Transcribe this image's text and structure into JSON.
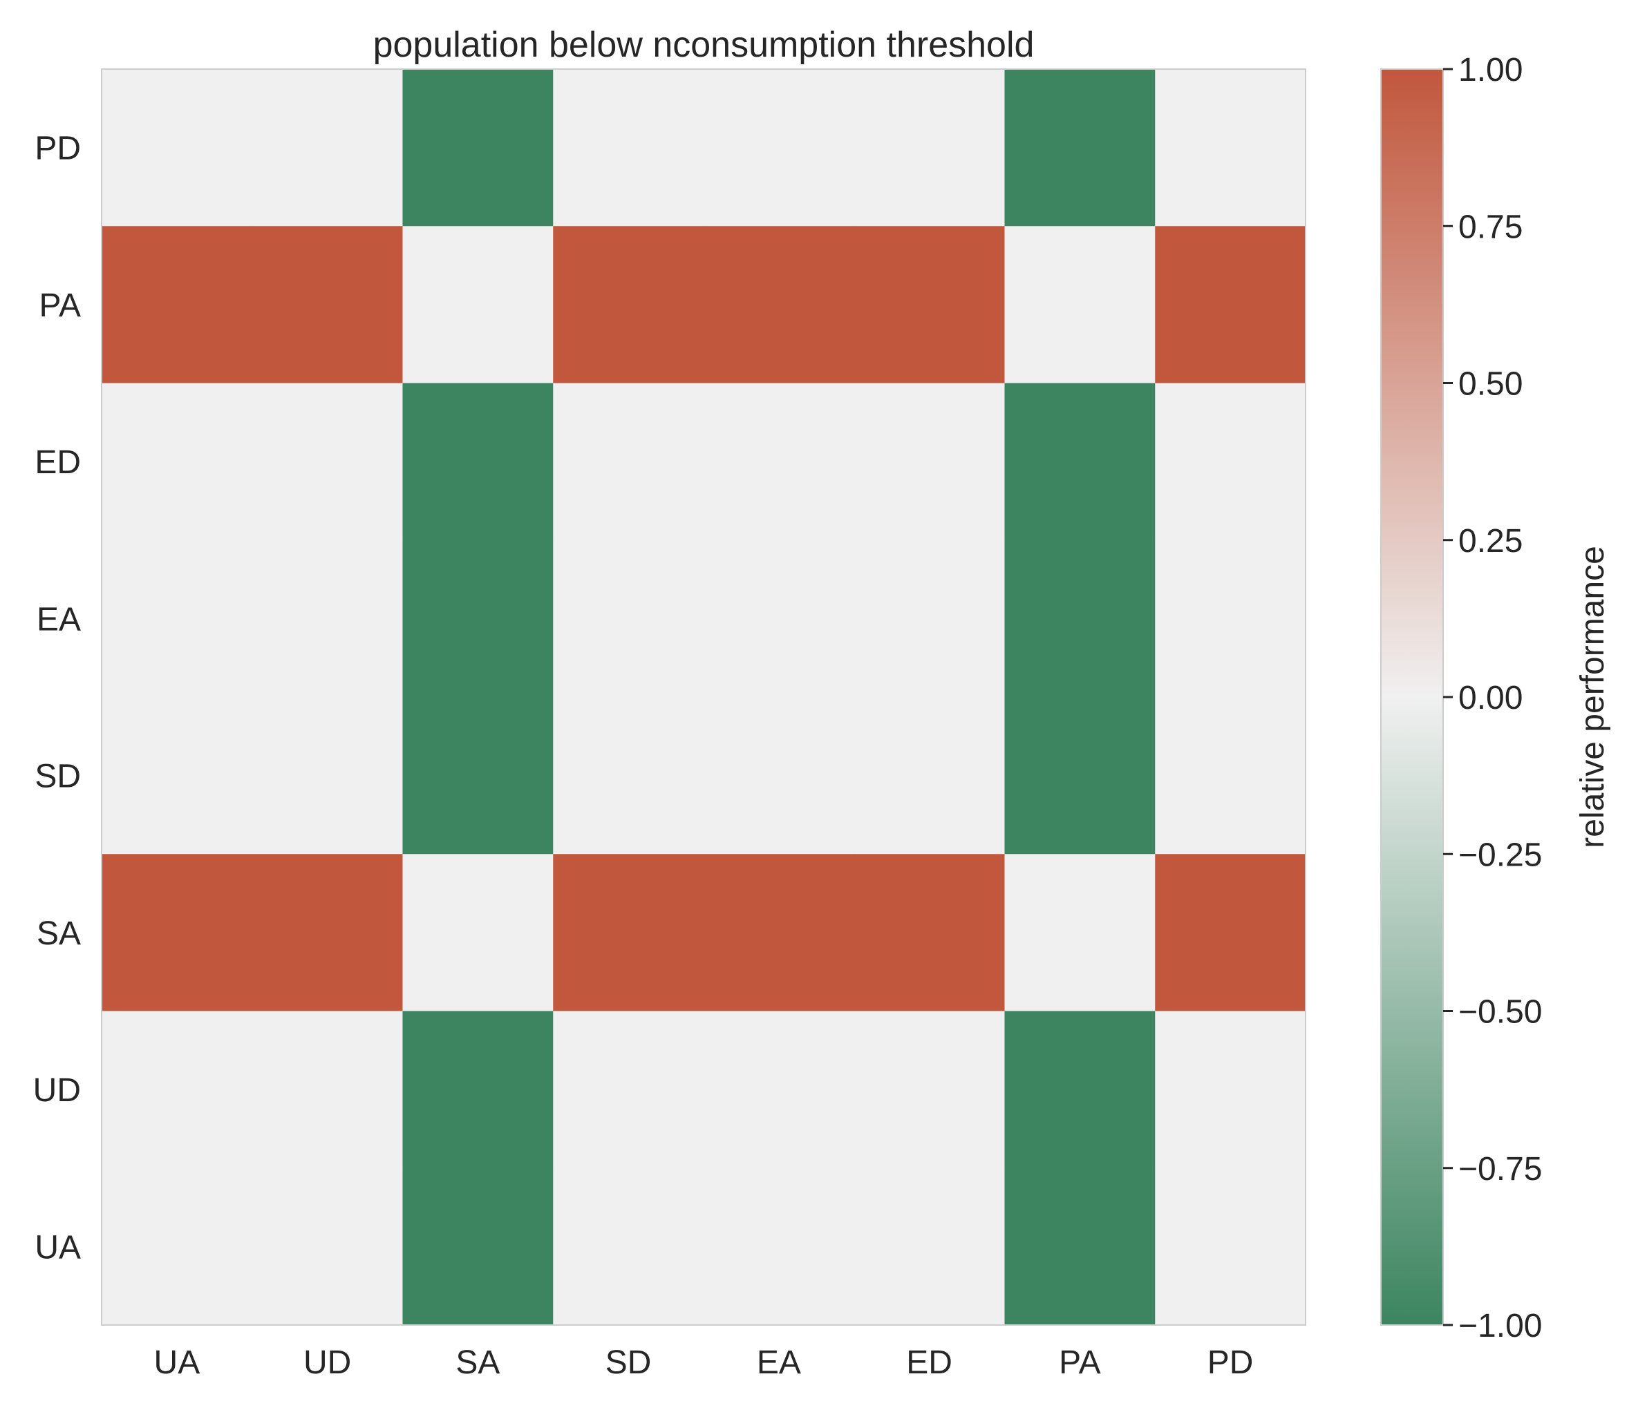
{
  "chart_data": {
    "type": "heatmap",
    "title": "population below nconsumption threshold",
    "x_categories": [
      "UA",
      "UD",
      "SA",
      "SD",
      "EA",
      "ED",
      "PA",
      "PD"
    ],
    "y_categories_top_to_bottom": [
      "PD",
      "PA",
      "ED",
      "EA",
      "SD",
      "SA",
      "UD",
      "UA"
    ],
    "values_top_to_bottom": [
      [
        0,
        0,
        -1,
        0,
        0,
        0,
        -1,
        0
      ],
      [
        1,
        1,
        0,
        1,
        1,
        1,
        0,
        1
      ],
      [
        0,
        0,
        -1,
        0,
        0,
        0,
        -1,
        0
      ],
      [
        0,
        0,
        -1,
        0,
        0,
        0,
        -1,
        0
      ],
      [
        0,
        0,
        -1,
        0,
        0,
        0,
        -1,
        0
      ],
      [
        1,
        1,
        0,
        1,
        1,
        1,
        0,
        1
      ],
      [
        0,
        0,
        -1,
        0,
        0,
        0,
        -1,
        0
      ],
      [
        0,
        0,
        -1,
        0,
        0,
        0,
        -1,
        0
      ]
    ],
    "colorbar": {
      "label": "relative performance",
      "range": [
        -1,
        1
      ],
      "ticks": [
        1.0,
        0.75,
        0.5,
        0.25,
        0.0,
        -0.25,
        -0.5,
        -0.75,
        -1.0
      ],
      "tick_labels": [
        "1.00",
        "0.75",
        "0.50",
        "0.25",
        "0.00",
        "−0.25",
        "−0.50",
        "−0.75",
        "−1.00"
      ],
      "colors": {
        "low": "#3c8560",
        "mid": "#f0f0f0",
        "high": "#c1573d"
      }
    },
    "grid": false
  }
}
